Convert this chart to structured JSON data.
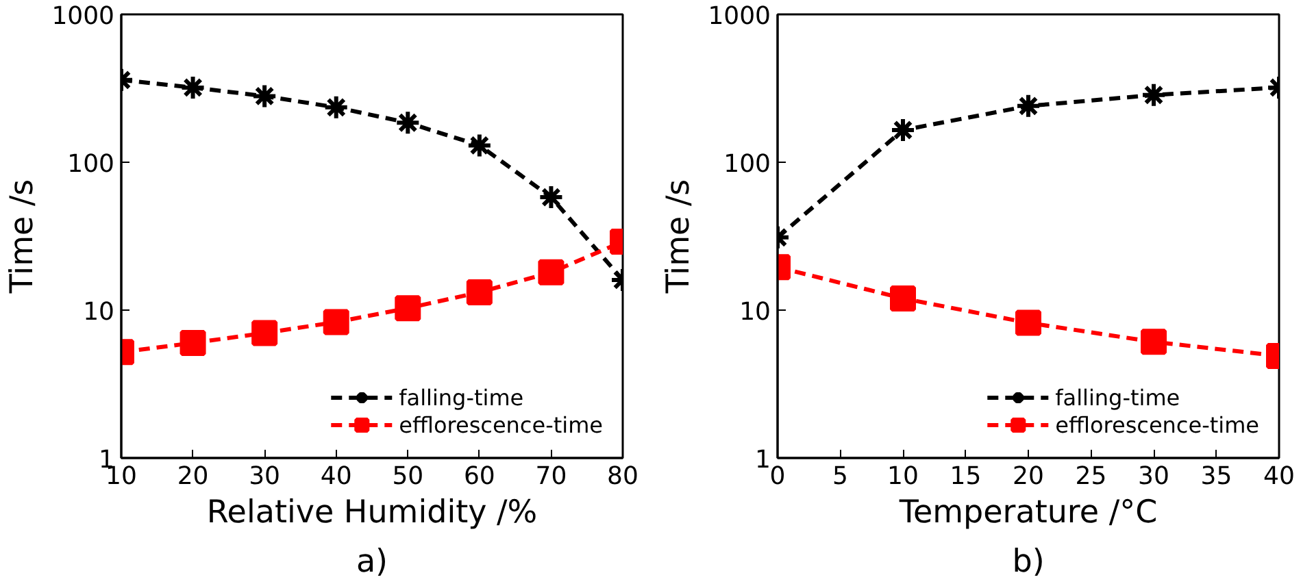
{
  "chart_data": [
    {
      "type": "line",
      "title": "a)",
      "xlabel": "Relative Humidity /%",
      "ylabel": "Time /s",
      "x": [
        10,
        20,
        30,
        40,
        50,
        60,
        70,
        80
      ],
      "xlim": [
        10,
        80
      ],
      "xticks": [
        10,
        20,
        30,
        40,
        50,
        60,
        70,
        80
      ],
      "ylim": [
        1,
        1000
      ],
      "yticks": [
        1,
        10,
        100,
        1000
      ],
      "log": "y",
      "grid": false,
      "legend": "bottom right",
      "line_style": "dashed",
      "series": [
        {
          "name": "falling-time",
          "color": "#000000",
          "marker": "cross",
          "values": [
            360,
            320,
            280,
            235,
            185,
            130,
            58,
            16
          ]
        },
        {
          "name": "efflorescence-time",
          "color": "#ff0000",
          "marker": "square",
          "values": [
            5.2,
            6,
            7,
            8.3,
            10.3,
            13.2,
            18,
            29
          ]
        }
      ]
    },
    {
      "type": "line",
      "title": "b)",
      "xlabel": "Temperature /°C",
      "ylabel": "Time /s",
      "x": [
        0,
        10,
        20,
        30,
        40
      ],
      "xlim": [
        0,
        40
      ],
      "xticks": [
        0,
        5,
        10,
        15,
        20,
        25,
        30,
        35,
        40
      ],
      "ylim": [
        1,
        1000
      ],
      "yticks": [
        1,
        10,
        100,
        1000
      ],
      "log": "y",
      "grid": false,
      "legend": "bottom right",
      "line_style": "dashed",
      "series": [
        {
          "name": "falling-time",
          "color": "#000000",
          "marker": "cross",
          "values": [
            31,
            165,
            240,
            285,
            320
          ]
        },
        {
          "name": "efflorescence-time",
          "color": "#ff0000",
          "marker": "square",
          "values": [
            19.5,
            12,
            8.2,
            6.1,
            4.9
          ]
        }
      ]
    }
  ]
}
